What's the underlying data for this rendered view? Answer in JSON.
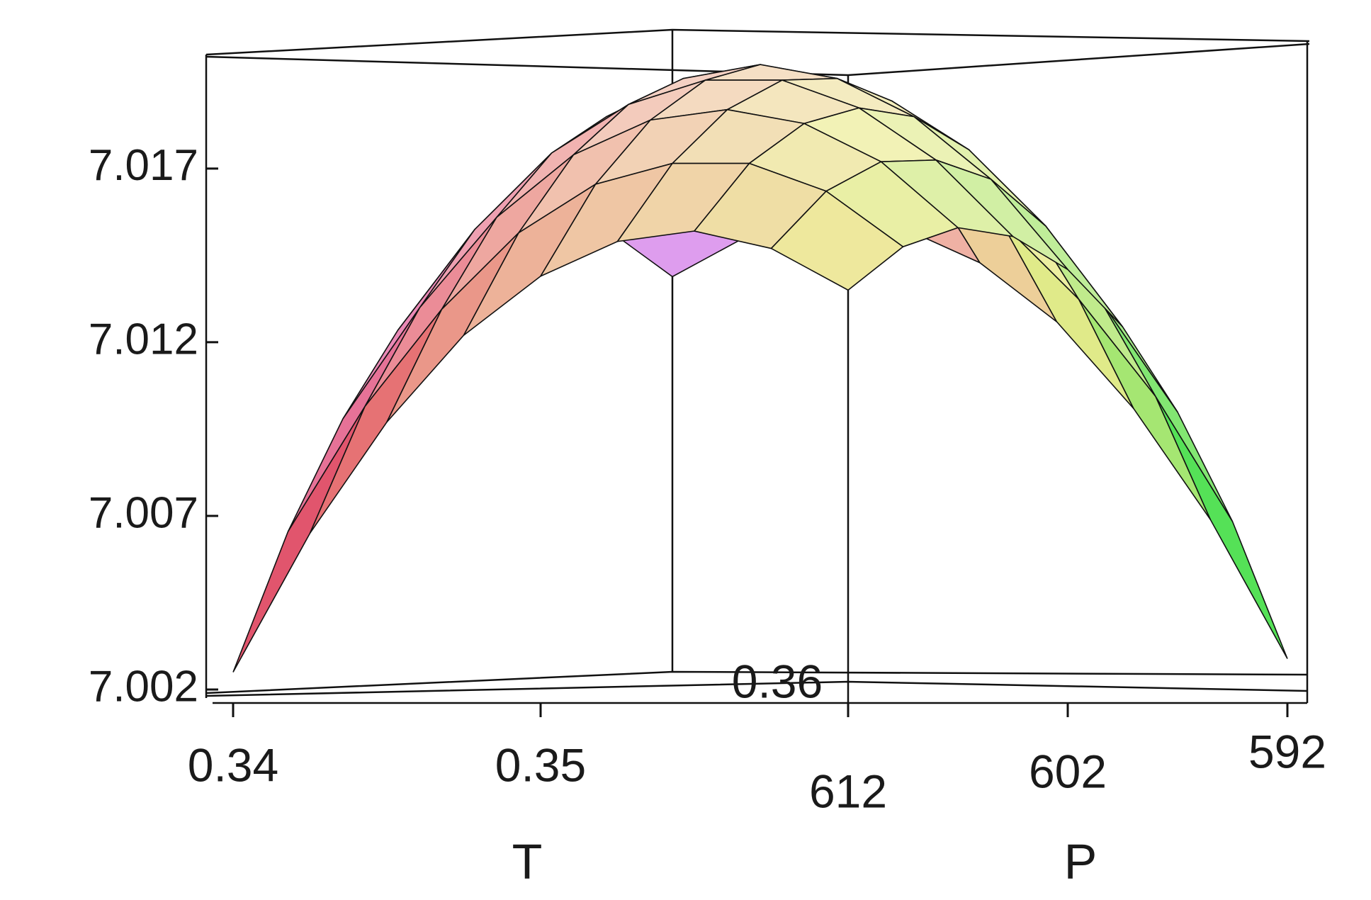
{
  "chart_data": {
    "type": "surface",
    "x_label": "T",
    "y_label": "P",
    "x": [
      0.34,
      0.3425,
      0.345,
      0.3475,
      0.35,
      0.3525,
      0.355,
      0.3575,
      0.36
    ],
    "y": [
      612,
      609.5,
      607,
      604.5,
      602,
      599.5,
      597,
      594.5,
      592
    ],
    "z": [
      [
        7.0025,
        7.0065,
        7.0097,
        7.0122,
        7.0139,
        7.0149,
        7.0152,
        7.0147,
        7.0135
      ],
      [
        7.0065,
        7.0101,
        7.0129,
        7.0151,
        7.0165,
        7.0171,
        7.0171,
        7.0163,
        7.0147
      ],
      [
        7.0097,
        7.0129,
        7.0155,
        7.0173,
        7.0183,
        7.0186,
        7.0182,
        7.0171,
        7.0152
      ],
      [
        7.0122,
        7.0151,
        7.0173,
        7.0187,
        7.0194,
        7.0194,
        7.0186,
        7.0171,
        7.0149
      ],
      [
        7.0139,
        7.0165,
        7.0183,
        7.0194,
        7.0198,
        7.0194,
        7.0183,
        7.0165,
        7.0139
      ],
      [
        7.0149,
        7.0171,
        7.0186,
        7.0194,
        7.0194,
        7.0187,
        7.0173,
        7.0151,
        7.0122
      ],
      [
        7.0152,
        7.0171,
        7.0182,
        7.0186,
        7.0183,
        7.0173,
        7.0155,
        7.0129,
        7.0097
      ],
      [
        7.0147,
        7.0163,
        7.0171,
        7.0171,
        7.0165,
        7.0151,
        7.0129,
        7.0101,
        7.0065
      ],
      [
        7.0135,
        7.0147,
        7.0152,
        7.0149,
        7.0139,
        7.0122,
        7.0097,
        7.0065,
        7.0025
      ]
    ],
    "xlim": [
      0.34,
      0.36
    ],
    "ylim": [
      612,
      592
    ],
    "zlim": [
      7.002,
      7.0202
    ],
    "xticks": [
      0.34,
      0.35,
      0.36
    ],
    "yticks": [
      612,
      602,
      592
    ],
    "zticks": [
      7.002,
      7.007,
      7.012,
      7.017
    ]
  }
}
